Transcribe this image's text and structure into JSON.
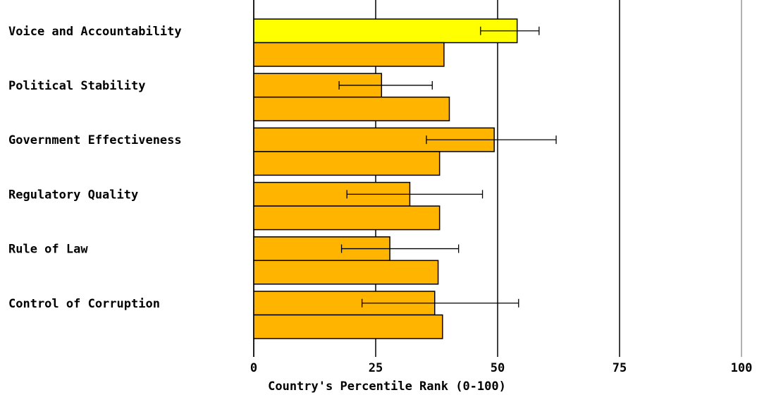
{
  "chart_data": {
    "type": "bar",
    "orientation": "horizontal",
    "categories": [
      "Voice and Accountability",
      "Political Stability",
      "Government Effectiveness",
      "Regulatory Quality",
      "Rule of Law",
      "Control of Corruption"
    ],
    "series": [
      {
        "values": [
          54,
          26.2,
          49.3,
          32,
          27.9,
          37.1
        ],
        "error_low": [
          46.5,
          17.5,
          35.4,
          19.1,
          18,
          22.2
        ],
        "error_high": [
          58.5,
          36.6,
          62,
          46.9,
          42,
          54.3
        ],
        "colors": [
          "#ffff00",
          "#ffb400",
          "#ffb400",
          "#ffb400",
          "#ffb400",
          "#ffb400"
        ]
      },
      {
        "values": [
          39,
          40.1,
          38.1,
          38.1,
          37.8,
          38.7
        ],
        "color": "#ffb400"
      }
    ],
    "xlabel": "Country's Percentile Rank (0-100)",
    "xlim": [
      0,
      100
    ],
    "xticks": [
      0,
      25,
      50,
      75,
      100
    ],
    "xtick_labels": [
      "0",
      "25",
      "50",
      "75",
      "100"
    ],
    "grid": true,
    "legend": "none"
  }
}
